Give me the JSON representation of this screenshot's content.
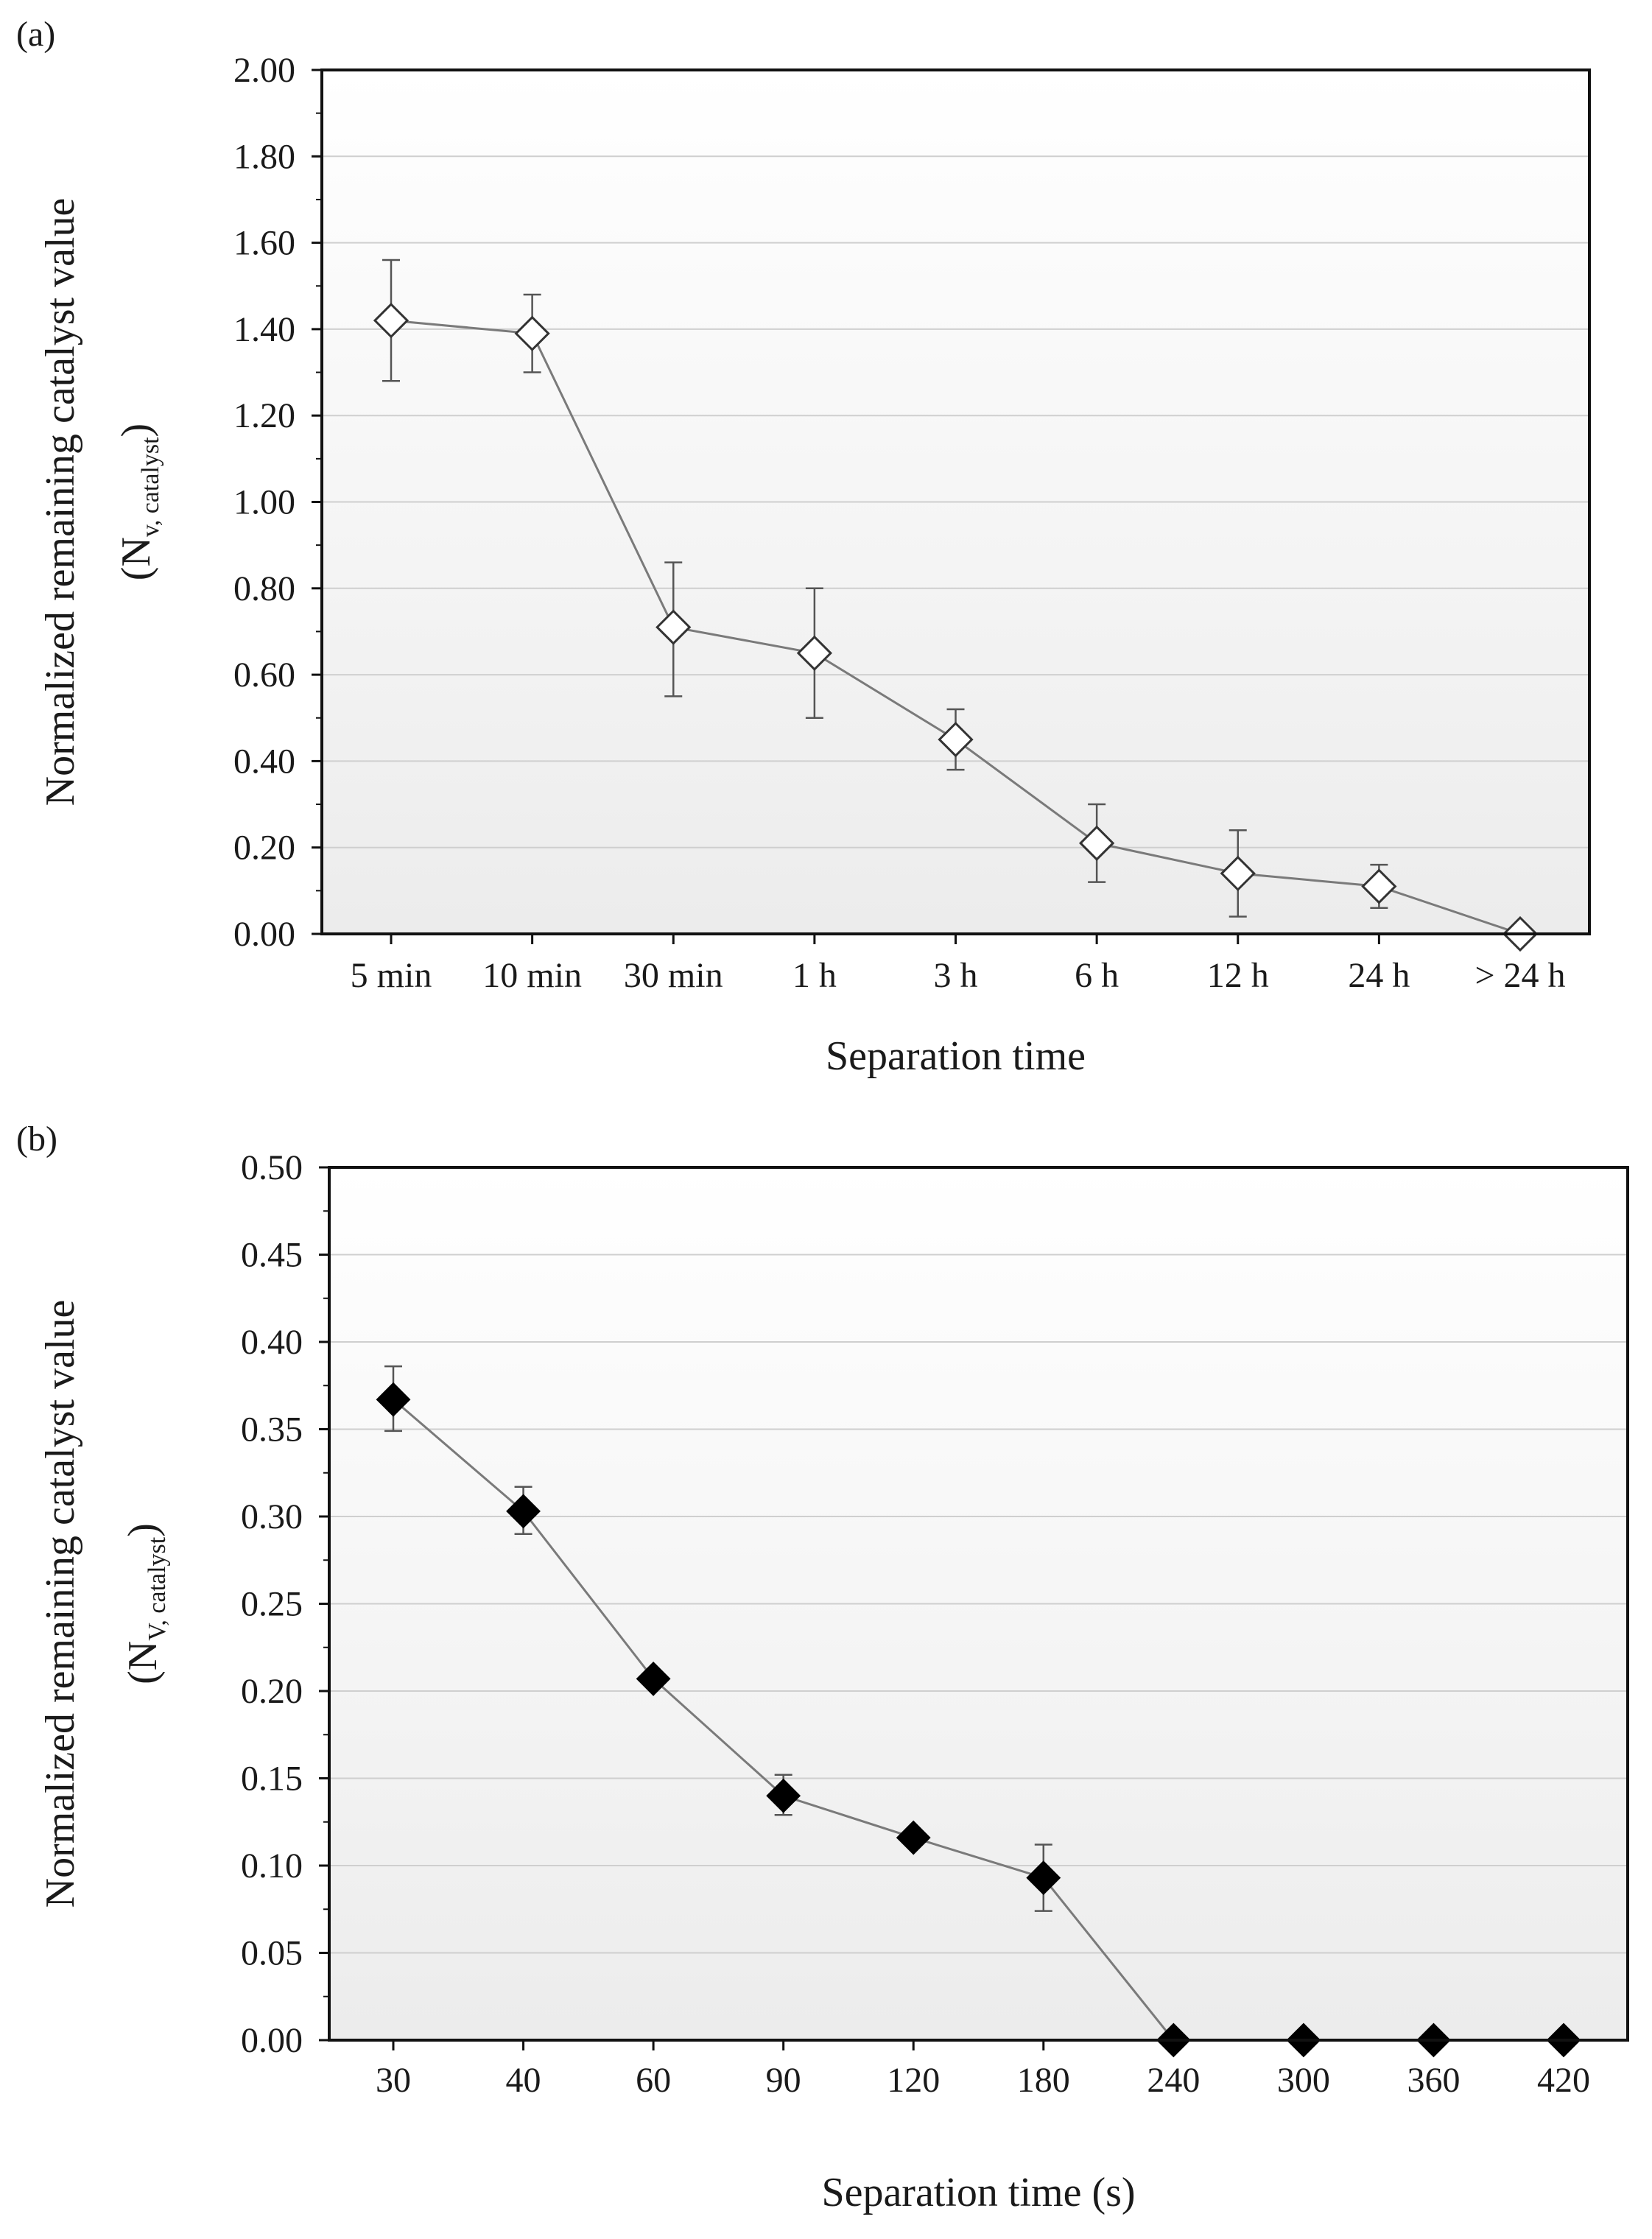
{
  "chart_data": [
    {
      "type": "line",
      "panel_label": "(a)",
      "xlabel": "Separation time",
      "ylabel": "Normalized remaining catalyst value",
      "ylabel_symbol": "(N",
      "ylabel_subscript": "v, catalyst",
      "ylabel_close": ")",
      "ylim": [
        0,
        2.0
      ],
      "yticks": [
        "0.00",
        "0.20",
        "0.40",
        "0.60",
        "0.80",
        "1.00",
        "1.20",
        "1.40",
        "1.60",
        "1.80",
        "2.00"
      ],
      "grid": true,
      "categories": [
        "5 min",
        "10 min",
        "30 min",
        "1 h",
        "3 h",
        "6 h",
        "12 h",
        "24 h",
        "> 24 h"
      ],
      "series": [
        {
          "name": "Normalized remaining catalyst",
          "marker": "open-diamond",
          "values": [
            1.42,
            1.39,
            0.71,
            0.65,
            0.45,
            0.21,
            0.14,
            0.11,
            0.0
          ],
          "error_low": [
            1.28,
            1.3,
            0.55,
            0.5,
            0.38,
            0.12,
            0.04,
            0.06,
            0.0
          ],
          "error_high": [
            1.56,
            1.48,
            0.86,
            0.8,
            0.52,
            0.3,
            0.24,
            0.16,
            0.0
          ]
        }
      ]
    },
    {
      "type": "line",
      "panel_label": "(b)",
      "xlabel": "Separation time (s)",
      "ylabel": "Normalized remaining catalyst value",
      "ylabel_symbol": "(N",
      "ylabel_subscript": "V, catalyst",
      "ylabel_close": ")",
      "ylim": [
        0,
        0.5
      ],
      "yticks": [
        "0.00",
        "0.05",
        "0.10",
        "0.15",
        "0.20",
        "0.25",
        "0.30",
        "0.35",
        "0.40",
        "0.45",
        "0.50"
      ],
      "grid": true,
      "categories": [
        "30",
        "40",
        "60",
        "90",
        "120",
        "180",
        "240",
        "300",
        "360",
        "420"
      ],
      "series": [
        {
          "name": "Normalized remaining catalyst",
          "marker": "filled-diamond",
          "values": [
            0.367,
            0.303,
            0.207,
            0.14,
            0.116,
            0.093,
            0.0,
            0.0,
            0.0,
            0.0
          ],
          "error_low": [
            0.349,
            0.29,
            0.207,
            0.129,
            0.116,
            0.074,
            0.0,
            0.0,
            0.0,
            0.0
          ],
          "error_high": [
            0.386,
            0.317,
            0.207,
            0.152,
            0.116,
            0.112,
            0.0,
            0.0,
            0.0,
            0.0
          ]
        }
      ]
    }
  ]
}
